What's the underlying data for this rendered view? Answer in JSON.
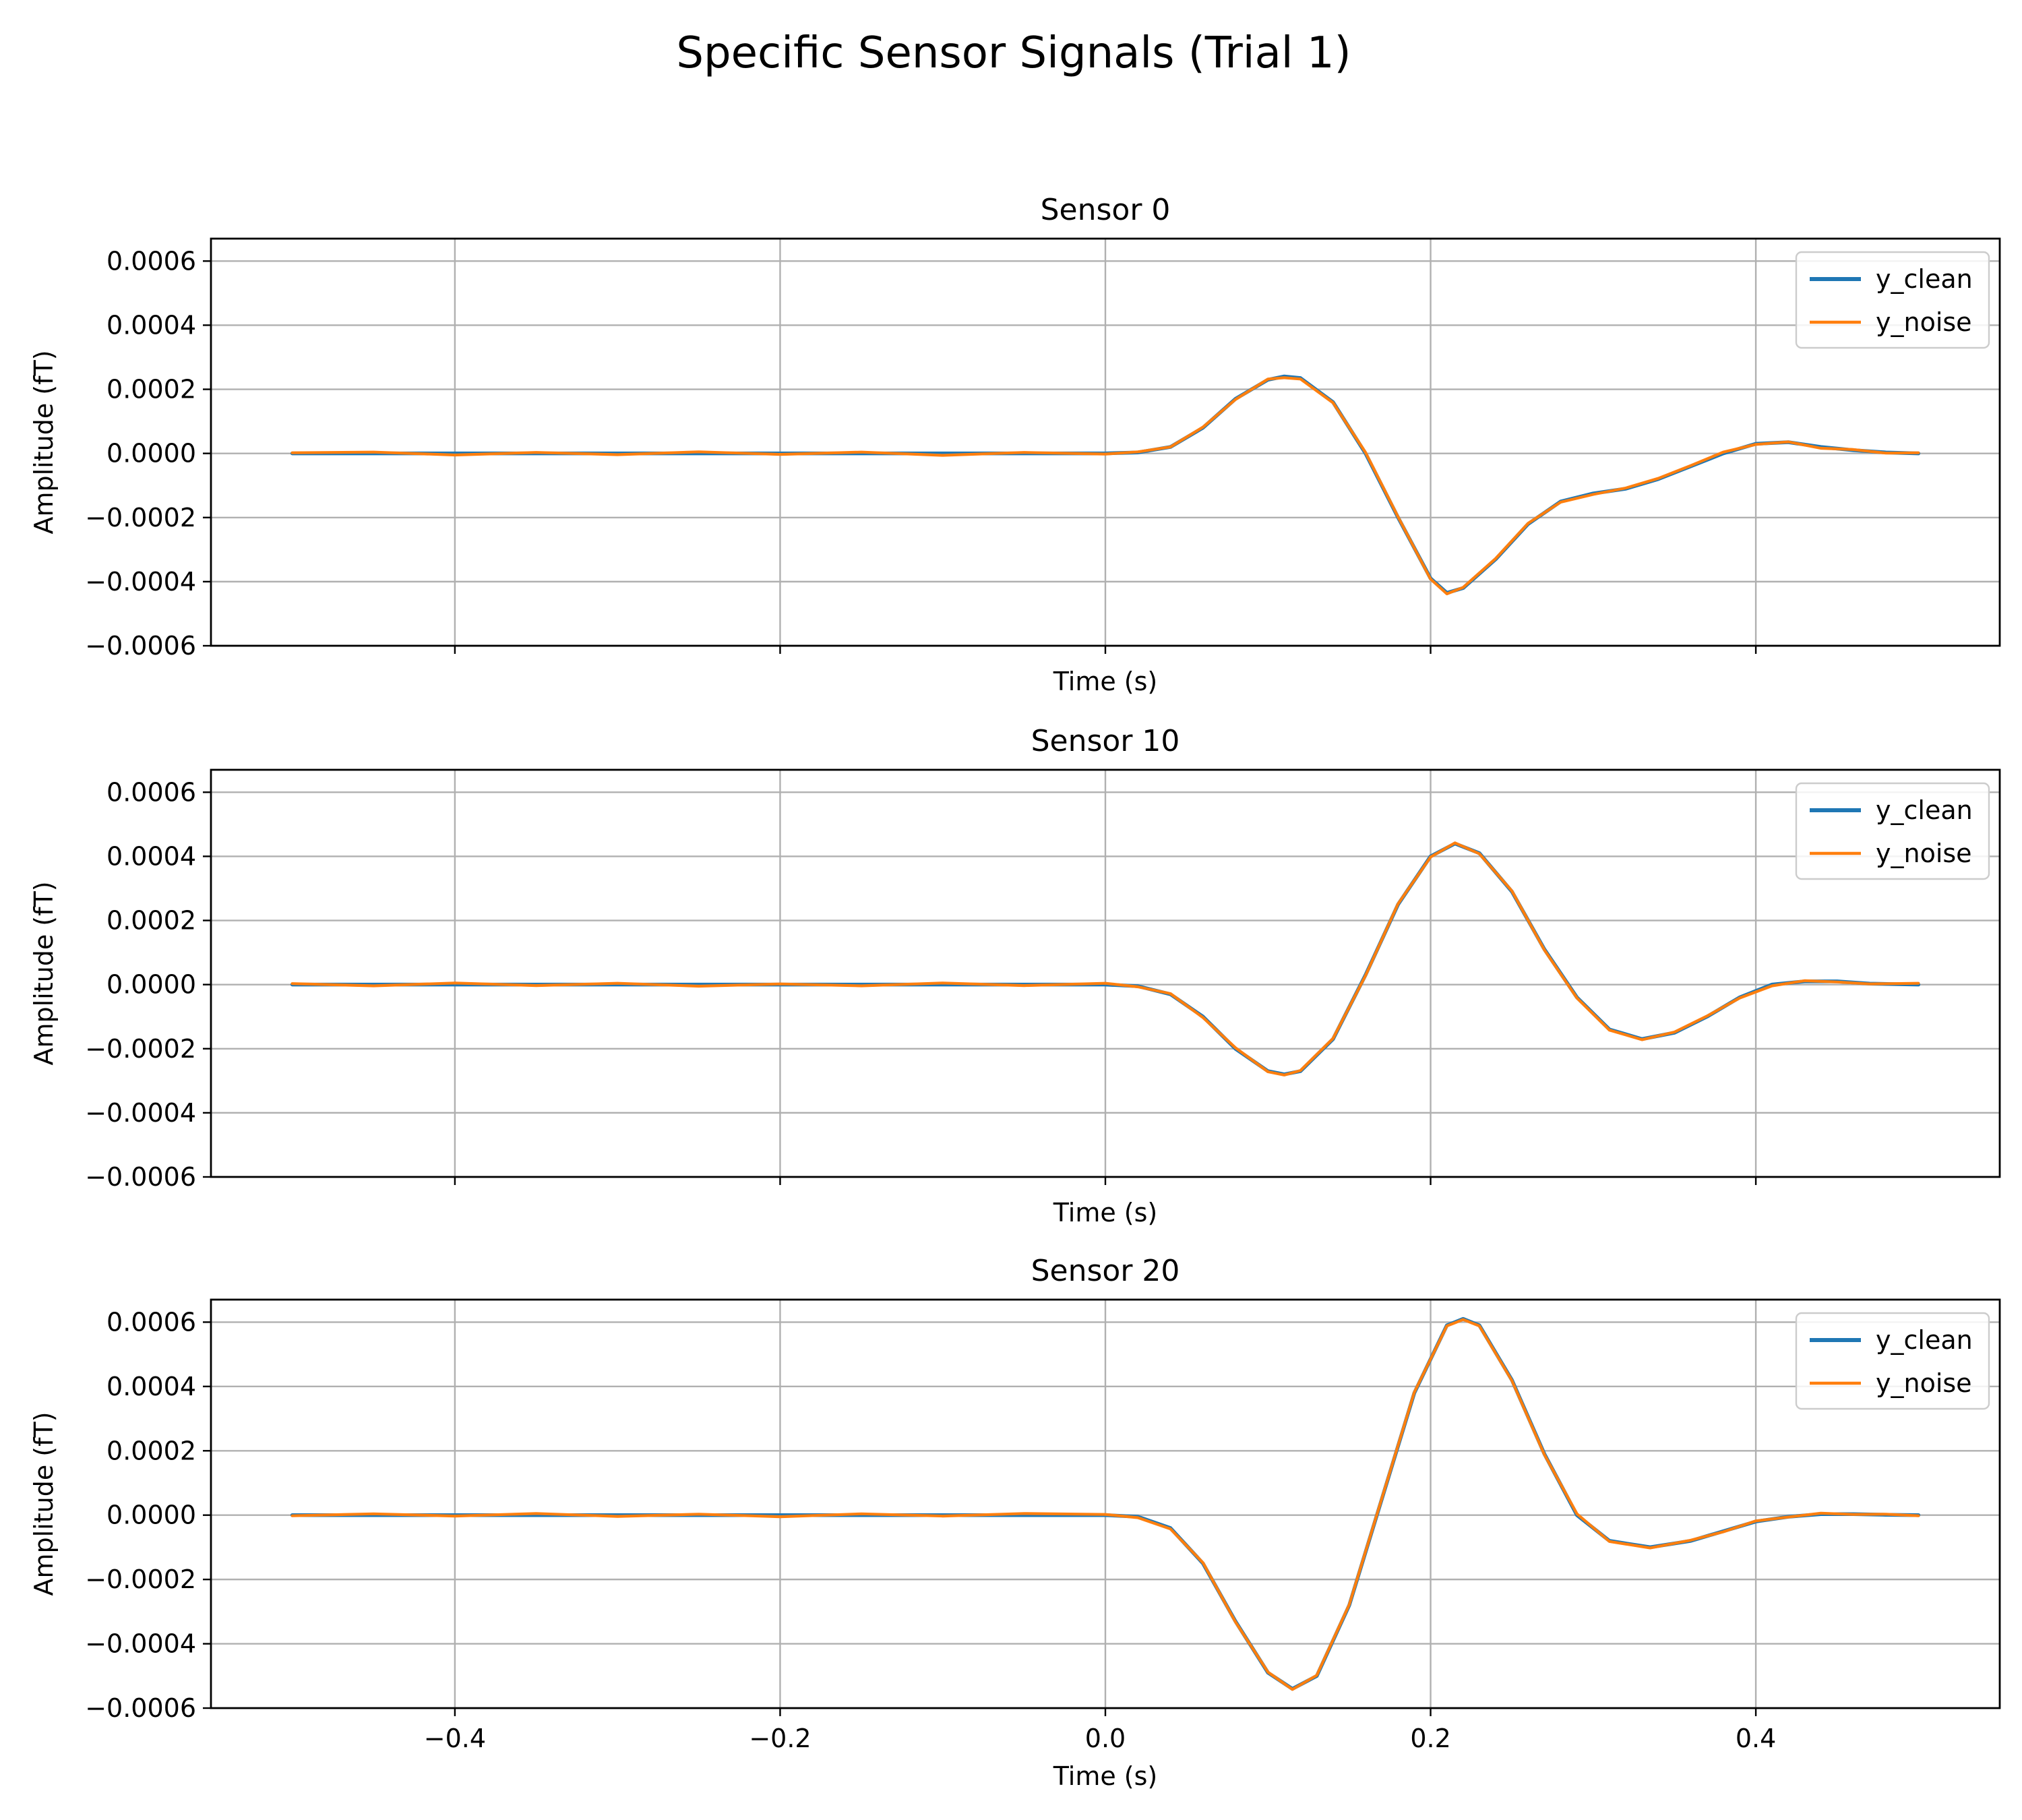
{
  "figure": {
    "suptitle": "Specific Sensor Signals (Trial 1)"
  },
  "chart_data": [
    {
      "type": "line",
      "title": "Sensor 0",
      "xlabel": "Time (s)",
      "ylabel": "Amplitude  (fT)",
      "xlim": [
        -0.55,
        0.55
      ],
      "ylim": [
        -0.0006,
        0.00067
      ],
      "xticks": [
        -0.4,
        -0.2,
        0.0,
        0.2,
        0.4
      ],
      "xtick_labels": [],
      "yticks": [
        -0.0006,
        -0.0004,
        -0.0002,
        0.0,
        0.0002,
        0.0004,
        0.0006
      ],
      "ytick_labels": [
        "−0.0006",
        "−0.0004",
        "−0.0002",
        "0.0000",
        "0.0002",
        "0.0004",
        "0.0006"
      ],
      "grid": true,
      "legend": "top-right",
      "x": [
        -0.5,
        -0.45,
        -0.4,
        -0.35,
        -0.3,
        -0.25,
        -0.2,
        -0.15,
        -0.1,
        -0.05,
        0.0,
        0.02,
        0.04,
        0.06,
        0.08,
        0.1,
        0.11,
        0.12,
        0.14,
        0.16,
        0.18,
        0.2,
        0.21,
        0.22,
        0.24,
        0.26,
        0.28,
        0.3,
        0.32,
        0.34,
        0.36,
        0.38,
        0.4,
        0.42,
        0.44,
        0.46,
        0.48,
        0.5
      ],
      "series": [
        {
          "name": "y_clean",
          "color": "#1f77b4",
          "values": [
            0,
            0,
            0,
            0,
            0,
            0,
            0,
            0,
            0,
            0,
            0,
            3e-06,
            2e-05,
            8e-05,
            0.00017,
            0.00023,
            0.00024,
            0.000235,
            0.00016,
            0.0,
            -0.0002,
            -0.00039,
            -0.000435,
            -0.00042,
            -0.00033,
            -0.00022,
            -0.00015,
            -0.000125,
            -0.00011,
            -8e-05,
            -4e-05,
            0.0,
            3e-05,
            3.5e-05,
            2e-05,
            1e-05,
            3e-06,
            0
          ]
        },
        {
          "name": "y_noise",
          "color": "#ff7f0e",
          "values": [
            2e-06,
            4e-06,
            -5e-06,
            3e-06,
            -4e-06,
            5e-06,
            -3e-06,
            4e-06,
            -6e-06,
            3e-06,
            -2e-06,
            5e-06,
            2e-05,
            8.2e-05,
            0.000168,
            0.000232,
            0.000236,
            0.000232,
            0.000158,
            3e-06,
            -0.000198,
            -0.000392,
            -0.000438,
            -0.000418,
            -0.000328,
            -0.000218,
            -0.000152,
            -0.000128,
            -0.000108,
            -7.8e-05,
            -3.8e-05,
            4e-06,
            2.8e-05,
            3.6e-05,
            1.6e-05,
            1.2e-05,
            1e-06,
            2e-06
          ]
        }
      ]
    },
    {
      "type": "line",
      "title": "Sensor 10",
      "xlabel": "Time (s)",
      "ylabel": "Amplitude  (fT)",
      "xlim": [
        -0.55,
        0.55
      ],
      "ylim": [
        -0.0006,
        0.00067
      ],
      "xticks": [
        -0.4,
        -0.2,
        0.0,
        0.2,
        0.4
      ],
      "xtick_labels": [],
      "yticks": [
        -0.0006,
        -0.0004,
        -0.0002,
        0.0,
        0.0002,
        0.0004,
        0.0006
      ],
      "ytick_labels": [
        "−0.0006",
        "−0.0004",
        "−0.0002",
        "0.0000",
        "0.0002",
        "0.0004",
        "0.0006"
      ],
      "grid": true,
      "legend": "top-right",
      "x": [
        -0.5,
        -0.45,
        -0.4,
        -0.35,
        -0.3,
        -0.25,
        -0.2,
        -0.15,
        -0.1,
        -0.05,
        0.0,
        0.02,
        0.04,
        0.06,
        0.08,
        0.1,
        0.11,
        0.12,
        0.14,
        0.16,
        0.18,
        0.2,
        0.215,
        0.23,
        0.25,
        0.27,
        0.29,
        0.31,
        0.33,
        0.35,
        0.37,
        0.39,
        0.41,
        0.43,
        0.45,
        0.47,
        0.5
      ],
      "series": [
        {
          "name": "y_clean",
          "color": "#1f77b4",
          "values": [
            0,
            0,
            0,
            0,
            0,
            0,
            0,
            0,
            0,
            0,
            0,
            -5e-06,
            -3e-05,
            -0.0001,
            -0.0002,
            -0.00027,
            -0.00028,
            -0.00027,
            -0.00017,
            3e-05,
            0.00025,
            0.0004,
            0.00044,
            0.00041,
            0.00029,
            0.00011,
            -4e-05,
            -0.00014,
            -0.00017,
            -0.00015,
            -0.0001,
            -4e-05,
            0.0,
            1e-05,
            1e-05,
            3e-06,
            0
          ]
        },
        {
          "name": "y_noise",
          "color": "#ff7f0e",
          "values": [
            3e-06,
            -4e-06,
            5e-06,
            -3e-06,
            4e-06,
            -5e-06,
            2e-06,
            -4e-06,
            5e-06,
            -3e-06,
            4e-06,
            -7e-06,
            -2.8e-05,
            -0.000103,
            -0.000197,
            -0.000272,
            -0.000282,
            -0.000268,
            -0.000168,
            2.8e-05,
            0.000252,
            0.000398,
            0.000442,
            0.000408,
            0.000292,
            0.000108,
            -4.2e-05,
            -0.000142,
            -0.000172,
            -0.000148,
            -9.8e-05,
            -4.2e-05,
            -4e-06,
            1.2e-05,
            8e-06,
            2e-06,
            4e-06
          ]
        }
      ]
    },
    {
      "type": "line",
      "title": "Sensor 20",
      "xlabel": "Time (s)",
      "ylabel": "Amplitude  (fT)",
      "xlim": [
        -0.55,
        0.55
      ],
      "ylim": [
        -0.0006,
        0.00067
      ],
      "xticks": [
        -0.4,
        -0.2,
        0.0,
        0.2,
        0.4
      ],
      "xtick_labels": [
        "−0.4",
        "−0.2",
        "0.0",
        "0.2",
        "0.4"
      ],
      "yticks": [
        -0.0006,
        -0.0004,
        -0.0002,
        0.0,
        0.0002,
        0.0004,
        0.0006
      ],
      "ytick_labels": [
        "−0.0006",
        "−0.0004",
        "−0.0002",
        "0.0000",
        "0.0002",
        "0.0004",
        "0.0006"
      ],
      "grid": true,
      "legend": "top-right",
      "x": [
        -0.5,
        -0.45,
        -0.4,
        -0.35,
        -0.3,
        -0.25,
        -0.2,
        -0.15,
        -0.1,
        -0.05,
        0.0,
        0.02,
        0.04,
        0.06,
        0.08,
        0.1,
        0.115,
        0.13,
        0.15,
        0.17,
        0.19,
        0.21,
        0.22,
        0.23,
        0.25,
        0.27,
        0.29,
        0.31,
        0.335,
        0.36,
        0.38,
        0.4,
        0.42,
        0.44,
        0.46,
        0.48,
        0.5
      ],
      "series": [
        {
          "name": "y_clean",
          "color": "#1f77b4",
          "values": [
            0,
            0,
            0,
            0,
            0,
            0,
            0,
            0,
            0,
            0,
            0,
            -5e-06,
            -4e-05,
            -0.00015,
            -0.00033,
            -0.00049,
            -0.00054,
            -0.0005,
            -0.00028,
            5e-05,
            0.00038,
            0.00059,
            0.00061,
            0.00059,
            0.00042,
            0.00019,
            0.0,
            -8e-05,
            -0.0001,
            -8e-05,
            -5e-05,
            -2e-05,
            -5e-06,
            3e-06,
            3e-06,
            1e-06,
            0
          ]
        },
        {
          "name": "y_noise",
          "color": "#ff7f0e",
          "values": [
            -2e-06,
            4e-06,
            -3e-06,
            5e-06,
            -4e-06,
            3e-06,
            -5e-06,
            4e-06,
            -3e-06,
            5e-06,
            2e-06,
            -8e-06,
            -4.3e-05,
            -0.000148,
            -0.000332,
            -0.000488,
            -0.000542,
            -0.000498,
            -0.000278,
            5.2e-05,
            0.000382,
            0.000588,
            0.000608,
            0.000588,
            0.000418,
            0.000188,
            4e-06,
            -8.2e-05,
            -0.000102,
            -7.8e-05,
            -5.2e-05,
            -1.8e-05,
            -6e-06,
            6e-06,
            2e-06,
            3e-06,
            -2e-06
          ]
        }
      ]
    }
  ]
}
